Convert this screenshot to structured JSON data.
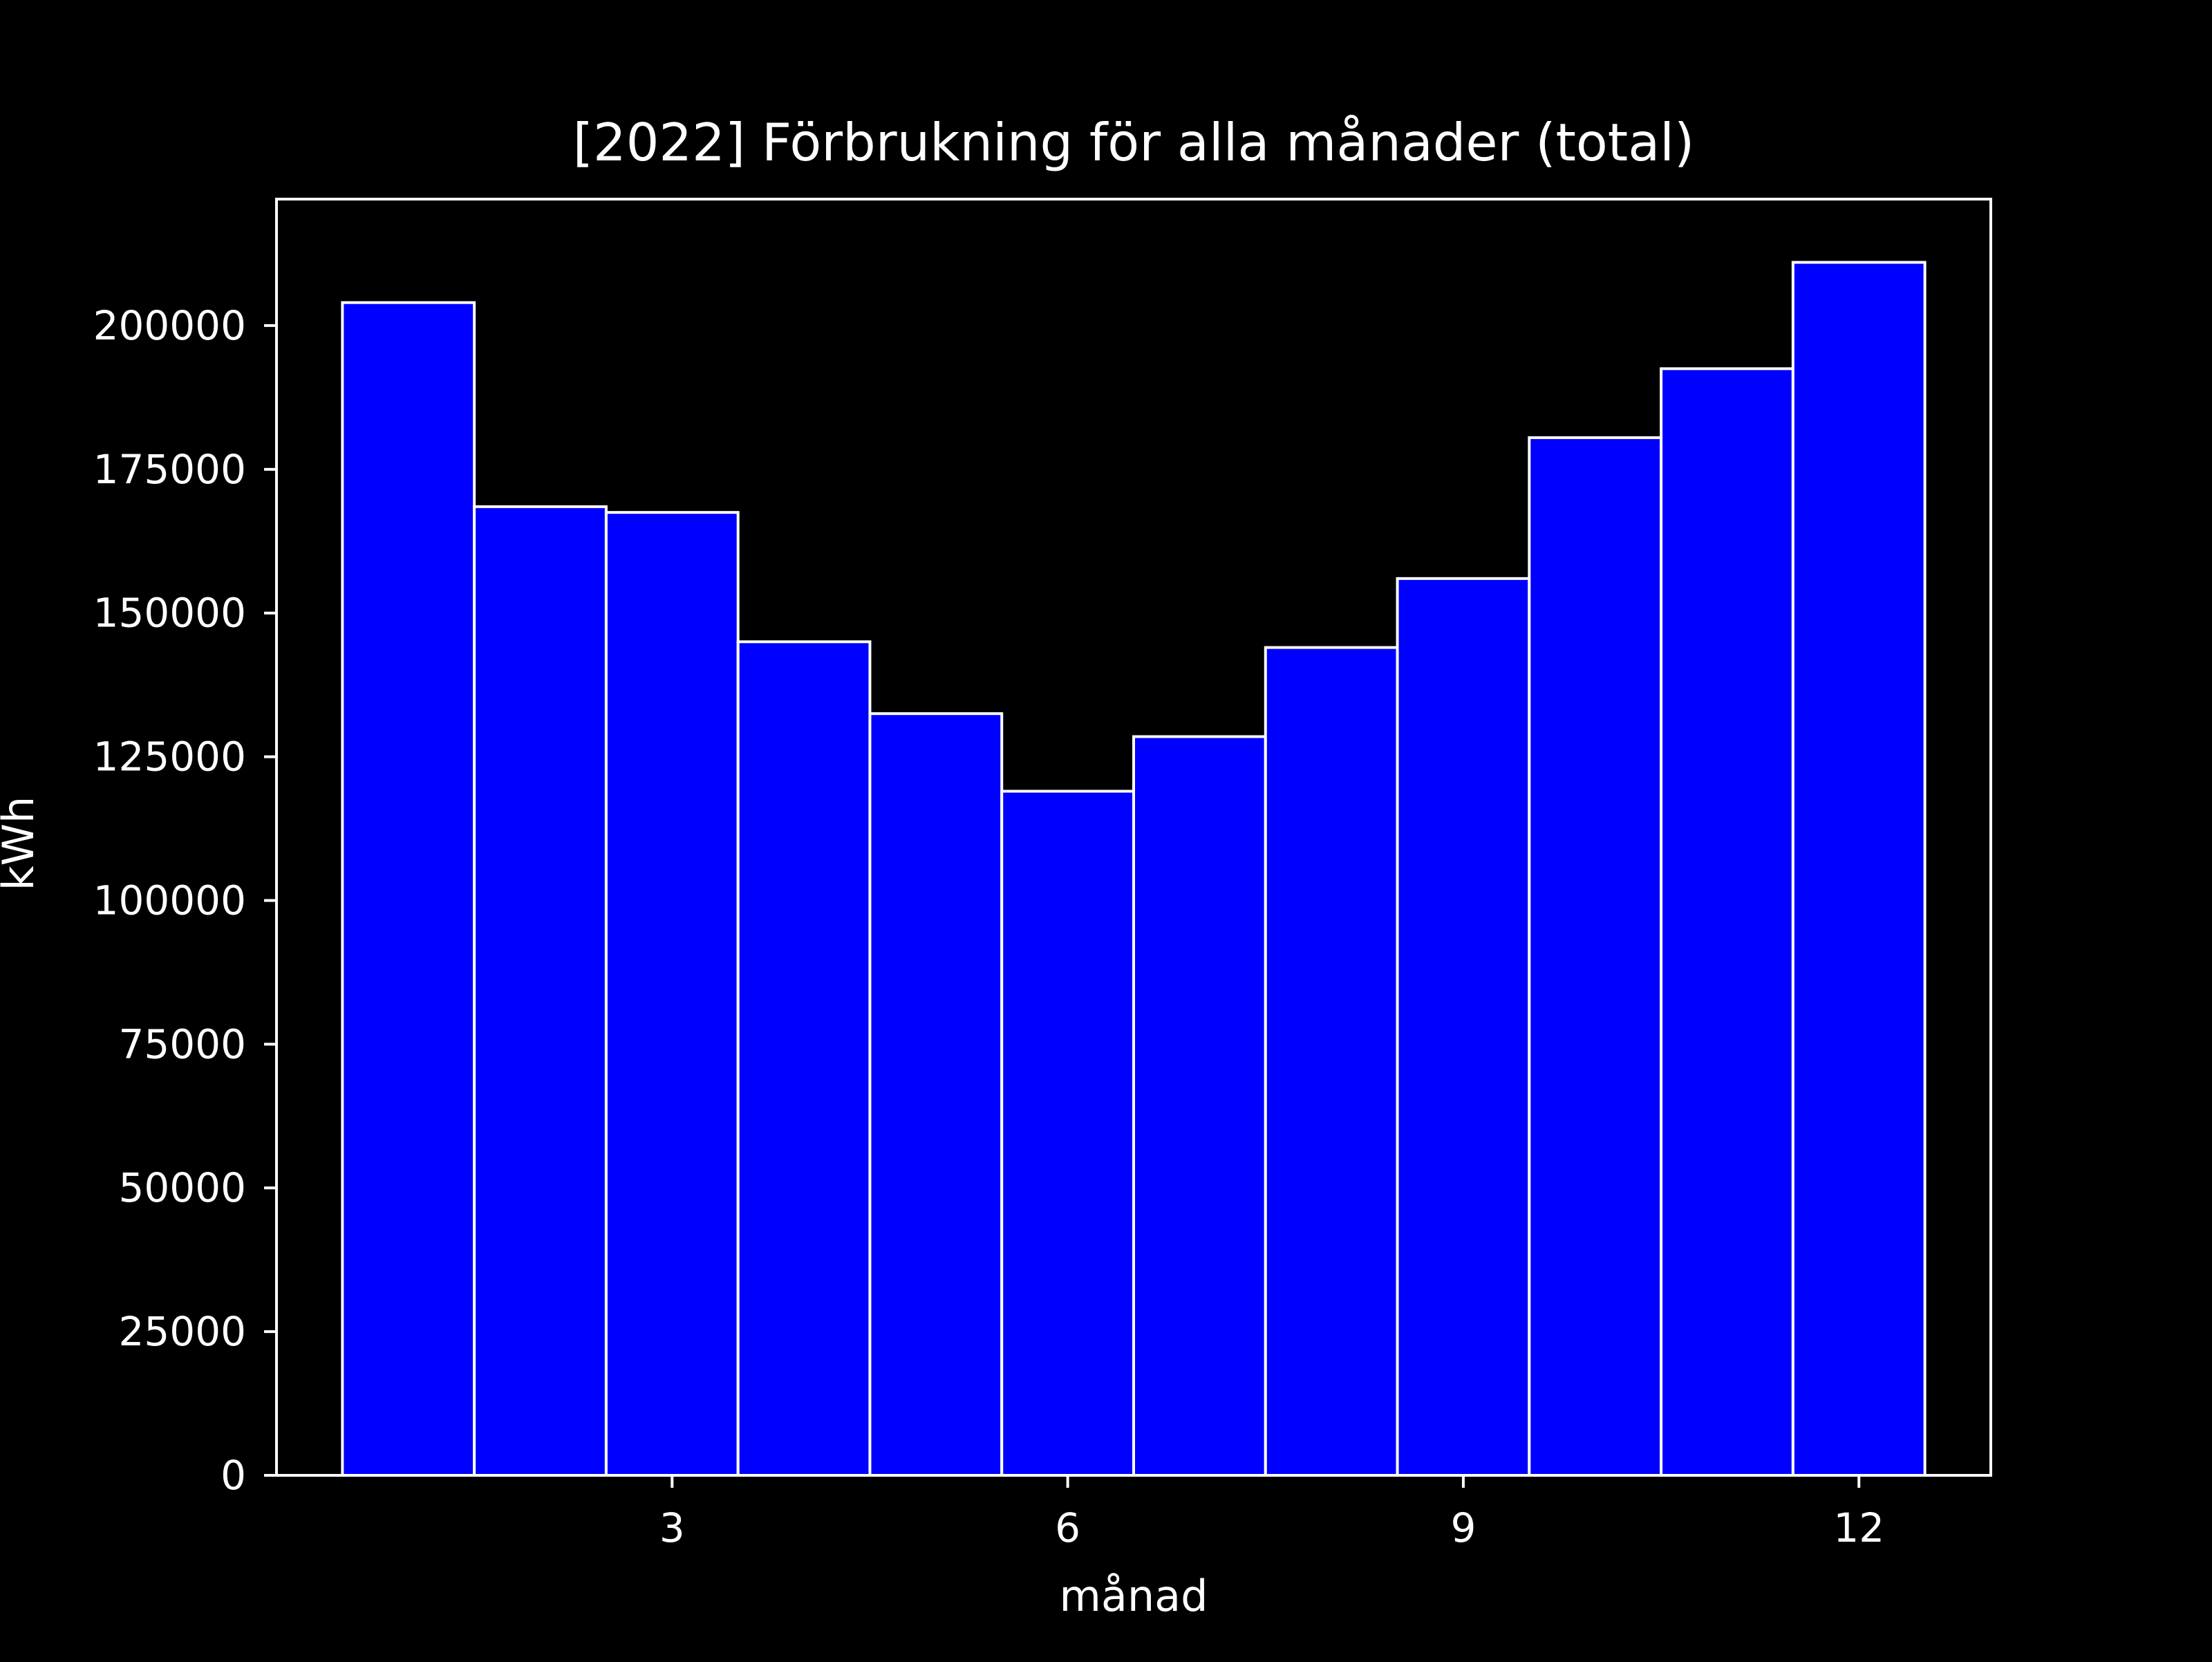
{
  "chart_data": {
    "type": "bar",
    "title": "[2022] Förbrukning för alla månader (total)",
    "xlabel": "månad",
    "ylabel": "kWh",
    "x": [
      1,
      2,
      3,
      4,
      5,
      6,
      7,
      8,
      9,
      10,
      11,
      12
    ],
    "values": [
      204000,
      168500,
      167500,
      145000,
      132500,
      119000,
      128500,
      144000,
      156000,
      180500,
      192500,
      211000
    ],
    "xlim": [
      0,
      13
    ],
    "ylim": [
      0,
      222000
    ],
    "xticks": [
      3,
      6,
      9,
      12
    ],
    "yticks": [
      0,
      25000,
      50000,
      75000,
      100000,
      125000,
      150000,
      175000,
      200000
    ],
    "grid": false,
    "bar_color": "#0000ff",
    "edge_color": "#ffffff",
    "background": "#000000",
    "text_color": "#ffffff"
  }
}
